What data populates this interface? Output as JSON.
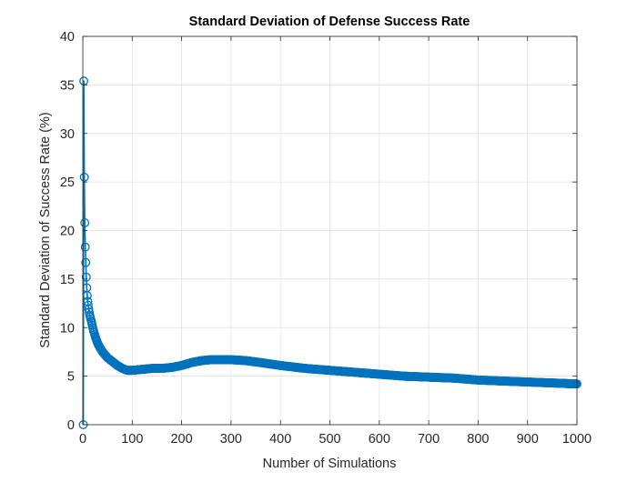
{
  "chart_data": {
    "type": "line",
    "title": "Standard Deviation of Defense Success Rate",
    "xlabel": "Number of Simulations",
    "ylabel": "Standard Deviation of Success Rate (%)",
    "xlim": [
      0,
      1000
    ],
    "ylim": [
      0,
      40
    ],
    "xticks": [
      0,
      100,
      200,
      300,
      400,
      500,
      600,
      700,
      800,
      900,
      1000
    ],
    "yticks": [
      0,
      5,
      10,
      15,
      20,
      25,
      30,
      35,
      40
    ],
    "grid": true,
    "marker": "circle",
    "series_color": "#0072BD",
    "series": [
      {
        "x": [
          1,
          2,
          3,
          4,
          5,
          6,
          7,
          8,
          9,
          10,
          12,
          14,
          16,
          18,
          20,
          25,
          30,
          35,
          40,
          45,
          50,
          60,
          70,
          80,
          90,
          100,
          120,
          140,
          160,
          180,
          200,
          220,
          240,
          260,
          280,
          300,
          330,
          360,
          400,
          450,
          500,
          550,
          600,
          650,
          700,
          750,
          800,
          850,
          900,
          950,
          1000
        ],
        "y": [
          0,
          35.4,
          25.5,
          20.8,
          18.3,
          16.7,
          15.2,
          14.1,
          13.3,
          12.7,
          11.9,
          11.3,
          10.9,
          10.5,
          10.0,
          9.1,
          8.4,
          7.9,
          7.5,
          7.2,
          6.9,
          6.5,
          6.1,
          5.8,
          5.6,
          5.6,
          5.7,
          5.8,
          5.8,
          5.9,
          6.1,
          6.4,
          6.6,
          6.7,
          6.7,
          6.7,
          6.6,
          6.4,
          6.1,
          5.8,
          5.6,
          5.4,
          5.2,
          5.0,
          4.9,
          4.8,
          4.6,
          4.5,
          4.4,
          4.3,
          4.2
        ]
      }
    ]
  }
}
